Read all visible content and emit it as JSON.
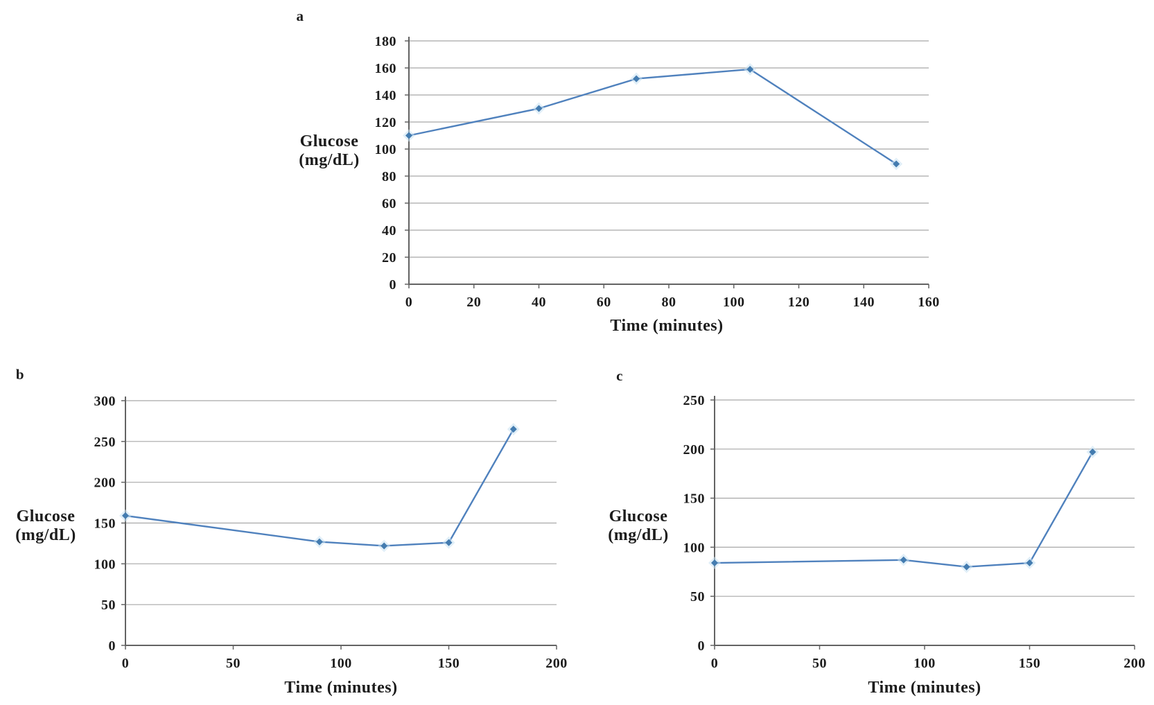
{
  "figure": {
    "background": "#ffffff",
    "line_color": "#4f81bd",
    "marker_color": "#447cb0",
    "marker_halo": "#c9e2f2",
    "grid_color": "#a8a8a8",
    "axis_color": "#636363",
    "text_color": "#1c1c1c"
  },
  "chart_data": [
    {
      "id": "a",
      "panel_label": "a",
      "type": "line",
      "x": [
        0,
        40,
        70,
        105,
        150
      ],
      "y": [
        110,
        130,
        152,
        159,
        89
      ],
      "xlabel": "Time (minutes)",
      "ylabel_line1": "Glucose",
      "ylabel_line2": "(mg/dL)",
      "xlim": [
        0,
        160
      ],
      "ylim": [
        0,
        180
      ],
      "xticks": [
        0,
        20,
        40,
        60,
        80,
        100,
        120,
        140,
        160
      ],
      "yticks": [
        0,
        20,
        40,
        60,
        80,
        100,
        120,
        140,
        160,
        180
      ],
      "grid": true,
      "legend": false
    },
    {
      "id": "b",
      "panel_label": "b",
      "type": "line",
      "x": [
        0,
        90,
        120,
        150,
        180
      ],
      "y": [
        159,
        127,
        122,
        126,
        265
      ],
      "xlabel": "Time (minutes)",
      "ylabel_line1": "Glucose",
      "ylabel_line2": "(mg/dL)",
      "xlim": [
        0,
        200
      ],
      "ylim": [
        0,
        300
      ],
      "xticks": [
        0,
        50,
        100,
        150,
        200
      ],
      "yticks": [
        0,
        50,
        100,
        150,
        200,
        250,
        300
      ],
      "grid": true,
      "legend": false
    },
    {
      "id": "c",
      "panel_label": "c",
      "type": "line",
      "x": [
        0,
        90,
        120,
        150,
        180
      ],
      "y": [
        84,
        87,
        80,
        84,
        197
      ],
      "xlabel": "Time (minutes)",
      "ylabel_line1": "Glucose",
      "ylabel_line2": "(mg/dL)",
      "xlim": [
        0,
        200
      ],
      "ylim": [
        0,
        250
      ],
      "xticks": [
        0,
        50,
        100,
        150,
        200
      ],
      "yticks": [
        0,
        50,
        100,
        150,
        200,
        250
      ],
      "grid": true,
      "legend": false
    }
  ]
}
